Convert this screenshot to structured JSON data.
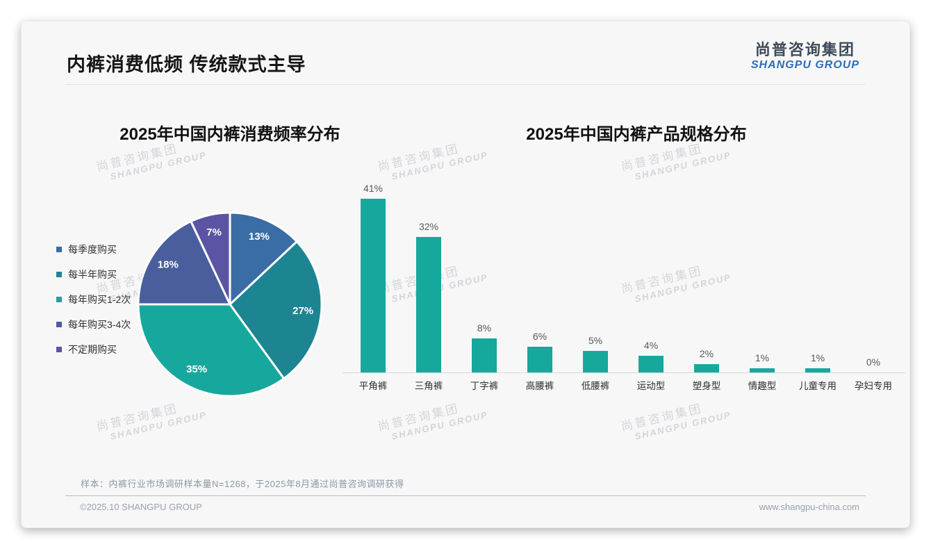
{
  "slide": {
    "title": "内裤消费低频 传统款式主导",
    "logo": {
      "cn": "尚普咨询集团",
      "en": "SHANGPU GROUP"
    },
    "watermark": {
      "cn": "尚普咨询集团",
      "en": "SHANGPU GROUP"
    },
    "footer": {
      "note": "样本：内裤行业市场调研样本量N=1268，于2025年8月通过尚普咨询调研获得",
      "copyright": "©2025.10 SHANGPU GROUP",
      "website": "www.shangpu-china.com"
    }
  },
  "chart_data": [
    {
      "type": "pie",
      "title": "2025年中国内裤消费频率分布",
      "labels": [
        "每季度购买",
        "每半年购买",
        "每年购买1-2次",
        "每年购买3-4次",
        "不定期购买"
      ],
      "values": [
        13,
        27,
        35,
        18,
        7
      ],
      "colors": [
        "#3a6da6",
        "#1d8592",
        "#16a89d",
        "#4a5e9e",
        "#5b54a4"
      ],
      "data_label_format": "percent",
      "data_label_color": "#ffffff",
      "legend_position": "left",
      "start_angle_deg": 0,
      "direction": "clockwise"
    },
    {
      "type": "bar",
      "title": "2025年中国内裤产品规格分布",
      "categories": [
        "平角裤",
        "三角裤",
        "丁字裤",
        "高腰裤",
        "低腰裤",
        "运动型",
        "塑身型",
        "情趣型",
        "儿童专用",
        "孕妇专用"
      ],
      "values": [
        41,
        32,
        8,
        6,
        5,
        4,
        2,
        1,
        1,
        0
      ],
      "bar_color": "#16a89d",
      "value_label_format": "percent",
      "ylabel": "",
      "xlabel": "",
      "ylim": [
        0,
        45
      ],
      "grid": false,
      "legend_position": "none"
    }
  ]
}
